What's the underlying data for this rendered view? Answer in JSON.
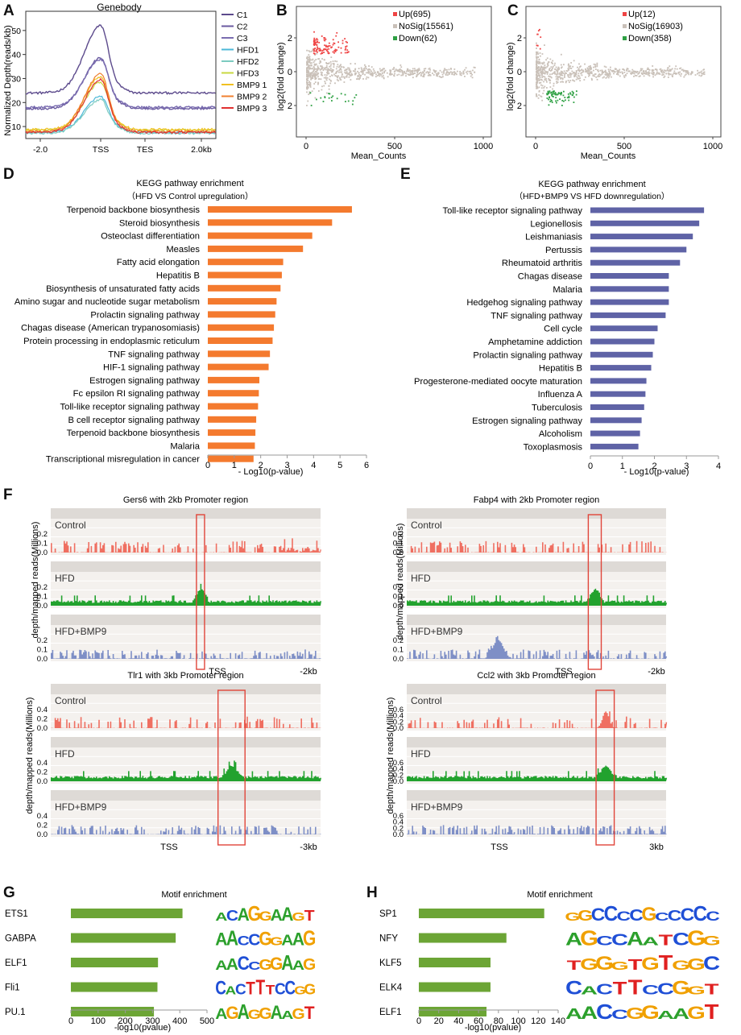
{
  "panel_letters": {
    "A": "A",
    "B": "B",
    "C": "C",
    "D": "D",
    "E": "E",
    "F": "F",
    "G": "G",
    "H": "H"
  },
  "colors": {
    "orange": "#f47a2e",
    "blue": "#5f63a6",
    "green": "#6ca535",
    "red": "#e85a50",
    "fgreen": "#22a22e",
    "fblue": "#7e8fc6",
    "fred": "#ef6f61",
    "gray": "#c9c0b8",
    "track": "#dedad6"
  },
  "chart_data": [
    {
      "id": "A",
      "type": "line",
      "title": "Genebody",
      "ylabel": "Normalized Depth(reads/kb)",
      "ylim": [
        5,
        58
      ],
      "yticks": [
        "10",
        "20",
        "30",
        "40",
        "50"
      ],
      "xticks": [
        "-2.0",
        "TSS",
        "TES",
        "2.0kb"
      ],
      "series": [
        {
          "name": "C1",
          "color": "#5c4a8c"
        },
        {
          "name": "C2",
          "color": "#6a5aa0"
        },
        {
          "name": "C3",
          "color": "#7a6db0"
        },
        {
          "name": "HFD1",
          "color": "#4cb8d8"
        },
        {
          "name": "HFD2",
          "color": "#7ccbc0"
        },
        {
          "name": "HFD3",
          "color": "#c8d840"
        },
        {
          "name": "BMP9 1",
          "color": "#f0c020"
        },
        {
          "name": "BMP9 2",
          "color": "#f08030"
        },
        {
          "name": "BMP9 3",
          "color": "#e03030"
        }
      ]
    },
    {
      "id": "B",
      "type": "scatter",
      "xlabel": "Mean_Counts",
      "ylabel": "log2(fold change)",
      "xticks": [
        "0",
        "500",
        "1000"
      ],
      "yticks": [
        "2",
        "0",
        "2"
      ],
      "legend": [
        {
          "label": "Up(695)",
          "color": "#ef4444"
        },
        {
          "label": "NoSig(15561)",
          "color": "#c9c0b8"
        },
        {
          "label": "Down(62)",
          "color": "#2ea043"
        }
      ]
    },
    {
      "id": "C",
      "type": "scatter",
      "xlabel": "Mean_Counts",
      "ylabel": "log2(fold change)",
      "xticks": [
        "0",
        "500",
        "1000"
      ],
      "yticks": [
        "2",
        "0",
        "2"
      ],
      "legend": [
        {
          "label": "Up(12)",
          "color": "#ef4444"
        },
        {
          "label": "NoSig(16903)",
          "color": "#c9c0b8"
        },
        {
          "label": "Down(358)",
          "color": "#2ea043"
        }
      ]
    },
    {
      "id": "D",
      "type": "bar",
      "title": "KEGG pathway enrichment",
      "subtitle": "（HFD VS Control upregulation）",
      "xlabel": "- Log10(p-value)",
      "xlim": [
        0,
        6
      ],
      "xticks": [
        "0",
        "1",
        "2",
        "3",
        "4",
        "5",
        "6"
      ],
      "categories": [
        "Terpenoid backbone biosynthesis",
        "Steroid biosynthesis",
        "Osteoclast differentiation",
        "Measles",
        "Fatty acid elongation",
        "Hepatitis B",
        "Biosynthesis of unsaturated fatty acids",
        "Amino sugar and nucleotide sugar metabolism",
        "Prolactin signaling pathway",
        "Chagas disease (American trypanosomiasis)",
        "Protein processing in endoplasmic reticulum",
        "TNF signaling pathway",
        "HIF-1 signaling pathway",
        "Estrogen signaling pathway",
        "Fc epsilon RI signaling pathway",
        "Toll-like receptor signaling pathway",
        "B cell receptor signaling pathway",
        "Terpenoid backbone biosynthesis",
        "Malaria",
        "Transcriptional misregulation in cancer"
      ],
      "values": [
        5.45,
        4.7,
        3.95,
        3.6,
        2.85,
        2.8,
        2.75,
        2.6,
        2.55,
        2.5,
        2.45,
        2.35,
        2.3,
        1.95,
        1.93,
        1.9,
        1.83,
        1.8,
        1.78,
        1.73
      ]
    },
    {
      "id": "E",
      "type": "bar",
      "title": "KEGG pathway enrichment",
      "subtitle": "（HFD+BMP9 VS HFD downregulation）",
      "xlabel": "- Log10(p-value)",
      "xlim": [
        0,
        4
      ],
      "xticks": [
        "0",
        "1",
        "2",
        "3",
        "4"
      ],
      "categories": [
        "Toll-like receptor signaling pathway",
        "Legionellosis",
        "Leishmaniasis",
        "Pertussis",
        "Rheumatoid arthritis",
        "Chagas disease",
        "Malaria",
        "Hedgehog signaling pathway",
        "TNF signaling pathway",
        "Cell cycle",
        "Amphetamine addiction",
        "Prolactin signaling pathway",
        "Hepatitis B",
        "Progesterone-mediated oocyte maturation",
        "Influenza A",
        "Tuberculosis",
        "Estrogen signaling pathway",
        "Alcoholism",
        "Toxoplasmosis"
      ],
      "values": [
        3.55,
        3.4,
        3.2,
        3.0,
        2.8,
        2.45,
        2.45,
        2.45,
        2.35,
        2.1,
        2.0,
        1.95,
        1.9,
        1.75,
        1.72,
        1.68,
        1.6,
        1.55,
        1.5
      ]
    },
    {
      "id": "F",
      "type": "area",
      "ylabel": "depth/mapped reads(Millions)",
      "tracks": [
        {
          "title": "Gers6 with 2kb Promoter region",
          "conditions": [
            "Control",
            "HFD",
            "HFD+BMP9"
          ],
          "yticks": [
            "0.0",
            "0.1",
            "0.2"
          ],
          "xticks": [
            "TSS",
            "-2kb"
          ],
          "ymax": 0.25,
          "highlight": [
            0.54,
            0.57
          ]
        },
        {
          "title": "Fabp4 with 2kb Promoter region",
          "conditions": [
            "Control",
            "HFD",
            "HFD+BMP9"
          ],
          "yticks": [
            "0.0",
            "0.1",
            "0.2"
          ],
          "xticks": [
            "TSS",
            "-2kb"
          ],
          "ymax": 0.25,
          "highlight": [
            0.7,
            0.75
          ]
        },
        {
          "title": "Tlr1 with 3kb Promoter region",
          "conditions": [
            "Control",
            "HFD",
            "HFD+BMP9"
          ],
          "yticks": [
            "0.0",
            "0.2",
            "0.4"
          ],
          "xticks": [
            "TSS",
            "-3kb"
          ],
          "ymax": 0.5,
          "highlight": [
            0.62,
            0.72
          ]
        },
        {
          "title": "Ccl2 with 3kb Promoter region",
          "conditions": [
            "Control",
            "HFD",
            "HFD+BMP9"
          ],
          "yticks": [
            "0.0",
            "0.2",
            "0.4",
            "0.6"
          ],
          "xticks": [
            "TSS",
            "3kb"
          ],
          "ymax": 0.75,
          "highlight": [
            0.73,
            0.8
          ]
        }
      ]
    },
    {
      "id": "G",
      "type": "bar",
      "title": "Motif enrichment",
      "xlabel": "-log10(pvalue)",
      "xlim": [
        0,
        500
      ],
      "xticks": [
        "0",
        "100",
        "200",
        "300",
        "400",
        "500"
      ],
      "categories": [
        "ETS1",
        "GABPA",
        "ELF1",
        "Fli1",
        "PU.1"
      ],
      "values": [
        410,
        385,
        320,
        318,
        305
      ],
      "motifs": [
        "ACAGGAAGT",
        "AACCGGAAG",
        "AACCGGAAG",
        "CACTTTCCGG",
        "AGAGGAAGT"
      ]
    },
    {
      "id": "H",
      "type": "bar",
      "title": "Motif enrichment",
      "xlabel": "-log10(pvalue)",
      "xlim": [
        0,
        140
      ],
      "xticks": [
        "0",
        "20",
        "40",
        "60",
        "80",
        "100",
        "120",
        "140"
      ],
      "categories": [
        "SP1",
        "NFY",
        "KLF5",
        "ELK4",
        "ELF1"
      ],
      "values": [
        126,
        88,
        72,
        72,
        68
      ],
      "motifs": [
        "GGCCCCGCCCCC",
        "AGCCAATCGG",
        "TGGGTGTGGC",
        "CACTTCCGGT",
        "AACCGGAAGT"
      ]
    }
  ]
}
